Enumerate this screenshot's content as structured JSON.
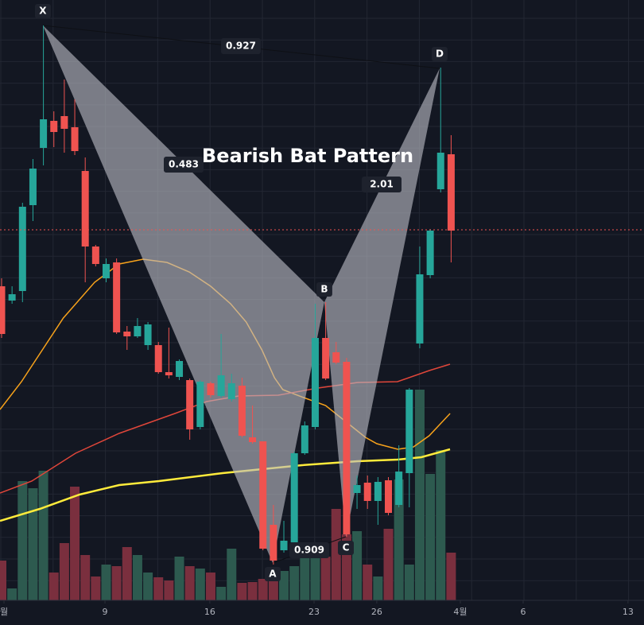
{
  "chart_data": {
    "type": "candlestick",
    "title": "Bearish Bat Pattern",
    "xlim": [
      -0.152,
      61.45
    ],
    "ylim": [
      0,
      786
    ],
    "xticks": [
      {
        "value": 0.23,
        "label": "월"
      },
      {
        "value": 9.89,
        "label": "9"
      },
      {
        "value": 19.92,
        "label": "16"
      },
      {
        "value": 29.89,
        "label": "23"
      },
      {
        "value": 35.89,
        "label": "26"
      },
      {
        "value": 43.88,
        "label": "4월"
      },
      {
        "value": 49.89,
        "label": "6"
      },
      {
        "value": 59.92,
        "label": "13"
      }
    ],
    "up_color": "#26a69a",
    "down_color": "#ef5350",
    "candles": {
      "open": [
        426,
        408,
        420,
        528,
        600,
        634,
        640,
        626,
        571,
        476,
        436,
        456,
        369,
        363,
        352,
        352,
        318,
        312,
        308,
        249,
        304,
        288,
        284,
        301,
        236,
        231,
        126,
        94,
        104,
        216,
        249,
        361,
        343,
        331,
        166,
        179,
        156,
        182,
        151,
        191,
        354,
        440,
        548,
        592
      ],
      "high": [
        436,
        426,
        531,
        586,
        754,
        646,
        686,
        661,
        588,
        478,
        461,
        461,
        376,
        386,
        381,
        356,
        374,
        334,
        310,
        308,
        306,
        366,
        316,
        311,
        276,
        231,
        151,
        131,
        218,
        256,
        404,
        406,
        356,
        336,
        188,
        188,
        186,
        186,
        226,
        298,
        476,
        498,
        701,
        616
      ],
      "low": [
        361,
        404,
        406,
        508,
        578,
        601,
        594,
        591,
        431,
        451,
        431,
        366,
        346,
        361,
        346,
        316,
        310,
        308,
        233,
        246,
        286,
        286,
        281,
        236,
        228,
        94,
        76,
        91,
        96,
        214,
        246,
        308,
        328,
        111,
        146,
        146,
        126,
        138,
        148,
        148,
        348,
        436,
        544,
        456
      ],
      "close": [
        366,
        416,
        526,
        574,
        636,
        620,
        624,
        596,
        476,
        454,
        454,
        368,
        363,
        376,
        378,
        318,
        314,
        332,
        246,
        306,
        289,
        314,
        304,
        238,
        230,
        96,
        81,
        106,
        216,
        251,
        361,
        310,
        330,
        114,
        176,
        156,
        180,
        141,
        193,
        296,
        441,
        496,
        594,
        496
      ]
    },
    "volume": {
      "ylim": [
        0,
        755
      ],
      "up_color": "#2d5a4f",
      "down_color": "#7a2f3e",
      "values": [
        50,
        15,
        150,
        141,
        163,
        35,
        72,
        143,
        57,
        30,
        45,
        43,
        67,
        57,
        35,
        29,
        25,
        55,
        43,
        40,
        35,
        17,
        65,
        22,
        23,
        27,
        30,
        37,
        43,
        55,
        65,
        55,
        115,
        83,
        87,
        45,
        30,
        90,
        152,
        45,
        265,
        159,
        189,
        60
      ]
    },
    "moving_averages": [
      {
        "color": "#f7a21b",
        "x": [
          -0.15,
          1.9,
          5.9,
          8.9,
          11.25,
          13.54,
          15.82,
          17.95,
          20.0,
          21.9,
          23.4,
          24.9,
          26.1,
          26.9,
          28.9,
          31.0,
          32.9,
          34.8,
          35.9,
          37.9,
          39.4,
          40.9,
          42.9
        ],
        "values": [
          271,
          306,
          386,
          431,
          454,
          460,
          456,
          444,
          426,
          404,
          381,
          346,
          311,
          296,
          286,
          276,
          256,
          236,
          228,
          221,
          224,
          238,
          266
        ]
      },
      {
        "color": "#e0463a",
        "x": [
          -0.15,
          2.89,
          7.07,
          11.25,
          16.58,
          19.62,
          22.66,
          26.46,
          30.27,
          34.07,
          37.87,
          40.91,
          42.89
        ],
        "values": [
          166,
          181,
          216,
          241,
          266,
          281,
          288,
          289,
          298,
          305,
          306,
          320,
          328
        ]
      },
      {
        "color": "#ffeb3b",
        "x": [
          -0.15,
          3.65,
          7.45,
          11.25,
          15.06,
          21.14,
          24.94,
          28.75,
          34.07,
          37.87,
          40.15,
          42.89
        ],
        "values": [
          131,
          146,
          164,
          176,
          181,
          191,
          196,
          201,
          206,
          208,
          211,
          221
        ]
      }
    ],
    "last_price": 497,
    "last_price_color": "#ef5350",
    "pattern": {
      "labels": [
        "X",
        "A",
        "B",
        "C",
        "D"
      ],
      "x": [
        3.95,
        25.93,
        30.87,
        32.93,
        41.9
      ],
      "values": [
        754,
        78,
        406,
        111,
        700
      ],
      "ratios": [
        0.927,
        0.483,
        0.909,
        2.01
      ],
      "fill": "rgba(185,188,196,0.62)"
    }
  }
}
